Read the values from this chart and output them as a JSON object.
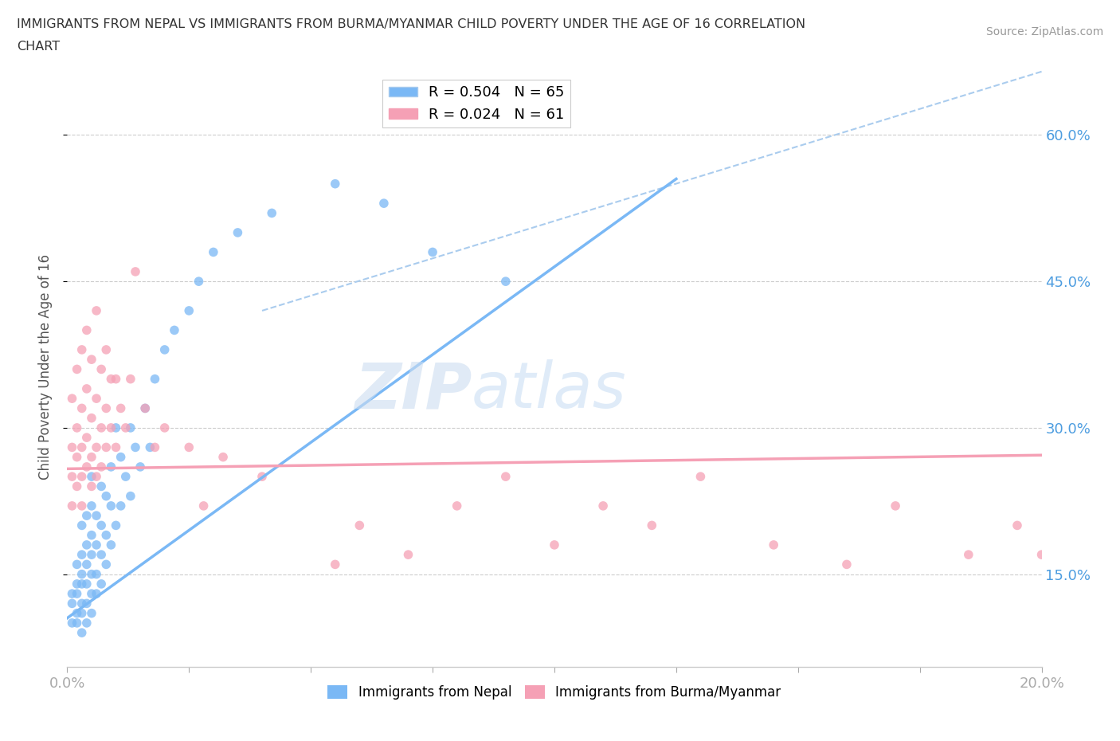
{
  "title_line1": "IMMIGRANTS FROM NEPAL VS IMMIGRANTS FROM BURMA/MYANMAR CHILD POVERTY UNDER THE AGE OF 16 CORRELATION",
  "title_line2": "CHART",
  "source_text": "Source: ZipAtlas.com",
  "ylabel": "Child Poverty Under the Age of 16",
  "xlim": [
    0.0,
    0.2
  ],
  "ylim": [
    0.055,
    0.67
  ],
  "yticks": [
    0.15,
    0.3,
    0.45,
    0.6
  ],
  "ytick_labels": [
    "15.0%",
    "30.0%",
    "45.0%",
    "60.0%"
  ],
  "xticks": [
    0.0,
    0.025,
    0.05,
    0.075,
    0.1,
    0.125,
    0.15,
    0.175,
    0.2
  ],
  "nepal_color": "#7ab8f5",
  "burma_color": "#f5a0b5",
  "nepal_R": 0.504,
  "nepal_N": 65,
  "burma_R": 0.024,
  "burma_N": 61,
  "nepal_x": [
    0.001,
    0.001,
    0.001,
    0.002,
    0.002,
    0.002,
    0.002,
    0.002,
    0.003,
    0.003,
    0.003,
    0.003,
    0.003,
    0.003,
    0.003,
    0.004,
    0.004,
    0.004,
    0.004,
    0.004,
    0.004,
    0.005,
    0.005,
    0.005,
    0.005,
    0.005,
    0.005,
    0.005,
    0.006,
    0.006,
    0.006,
    0.006,
    0.007,
    0.007,
    0.007,
    0.007,
    0.008,
    0.008,
    0.008,
    0.009,
    0.009,
    0.009,
    0.01,
    0.01,
    0.011,
    0.011,
    0.012,
    0.013,
    0.013,
    0.014,
    0.015,
    0.016,
    0.017,
    0.018,
    0.02,
    0.022,
    0.025,
    0.027,
    0.03,
    0.035,
    0.042,
    0.055,
    0.065,
    0.075,
    0.09
  ],
  "nepal_y": [
    0.1,
    0.12,
    0.13,
    0.1,
    0.11,
    0.13,
    0.14,
    0.16,
    0.09,
    0.11,
    0.12,
    0.14,
    0.15,
    0.17,
    0.2,
    0.1,
    0.12,
    0.14,
    0.16,
    0.18,
    0.21,
    0.11,
    0.13,
    0.15,
    0.17,
    0.19,
    0.22,
    0.25,
    0.13,
    0.15,
    0.18,
    0.21,
    0.14,
    0.17,
    0.2,
    0.24,
    0.16,
    0.19,
    0.23,
    0.18,
    0.22,
    0.26,
    0.2,
    0.3,
    0.22,
    0.27,
    0.25,
    0.23,
    0.3,
    0.28,
    0.26,
    0.32,
    0.28,
    0.35,
    0.38,
    0.4,
    0.42,
    0.45,
    0.48,
    0.5,
    0.52,
    0.55,
    0.53,
    0.48,
    0.45
  ],
  "burma_x": [
    0.001,
    0.001,
    0.001,
    0.001,
    0.002,
    0.002,
    0.002,
    0.002,
    0.003,
    0.003,
    0.003,
    0.003,
    0.003,
    0.004,
    0.004,
    0.004,
    0.004,
    0.005,
    0.005,
    0.005,
    0.005,
    0.006,
    0.006,
    0.006,
    0.006,
    0.007,
    0.007,
    0.007,
    0.008,
    0.008,
    0.008,
    0.009,
    0.009,
    0.01,
    0.01,
    0.011,
    0.012,
    0.013,
    0.014,
    0.016,
    0.018,
    0.02,
    0.025,
    0.028,
    0.032,
    0.04,
    0.055,
    0.06,
    0.07,
    0.08,
    0.09,
    0.1,
    0.11,
    0.12,
    0.13,
    0.145,
    0.16,
    0.17,
    0.185,
    0.195,
    0.2
  ],
  "burma_y": [
    0.22,
    0.25,
    0.28,
    0.33,
    0.24,
    0.27,
    0.3,
    0.36,
    0.22,
    0.25,
    0.28,
    0.32,
    0.38,
    0.26,
    0.29,
    0.34,
    0.4,
    0.24,
    0.27,
    0.31,
    0.37,
    0.25,
    0.28,
    0.33,
    0.42,
    0.26,
    0.3,
    0.36,
    0.28,
    0.32,
    0.38,
    0.3,
    0.35,
    0.28,
    0.35,
    0.32,
    0.3,
    0.35,
    0.46,
    0.32,
    0.28,
    0.3,
    0.28,
    0.22,
    0.27,
    0.25,
    0.16,
    0.2,
    0.17,
    0.22,
    0.25,
    0.18,
    0.22,
    0.2,
    0.25,
    0.18,
    0.16,
    0.22,
    0.17,
    0.2,
    0.17
  ],
  "nepal_trendline_x": [
    0.0,
    0.125
  ],
  "nepal_trendline_y": [
    0.105,
    0.555
  ],
  "burma_trendline_x": [
    0.0,
    0.2
  ],
  "burma_trendline_y": [
    0.258,
    0.272
  ],
  "diag_line_x": [
    0.04,
    0.2
  ],
  "diag_line_y": [
    0.42,
    0.665
  ],
  "axis_color": "#4d9de0",
  "grid_color": "#cccccc",
  "watermark_zip": "ZIP",
  "watermark_atlas": "atlas",
  "background_color": "#ffffff"
}
